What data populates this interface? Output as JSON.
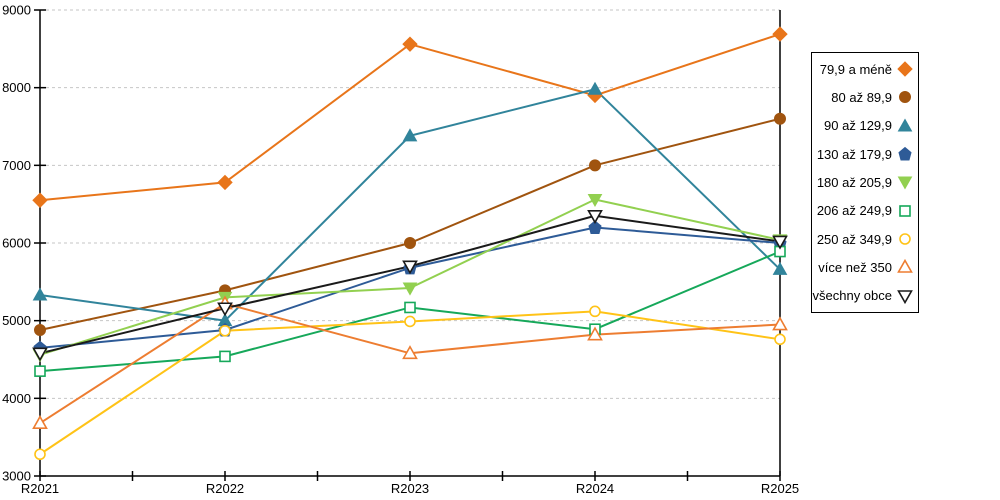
{
  "chart_data": {
    "type": "line",
    "title": "",
    "xlabel": "",
    "ylabel": "",
    "categories": [
      "R2021",
      "R2022",
      "R2023",
      "R2024",
      "R2025"
    ],
    "ylim": [
      3000,
      9000
    ],
    "y_ticks": [
      3000,
      4000,
      5000,
      6000,
      7000,
      8000,
      9000
    ],
    "grid": "horizontal-dashed",
    "legend_position": "right",
    "series": [
      {
        "name": "79,9 a méně",
        "marker": "diamond",
        "filled": true,
        "color": "#E8751A",
        "values": [
          6550,
          6780,
          8560,
          7900,
          8690
        ]
      },
      {
        "name": "80 až 89,9",
        "marker": "circle",
        "filled": true,
        "color": "#A0540F",
        "values": [
          4880,
          5390,
          6000,
          7000,
          7600
        ]
      },
      {
        "name": "90 až 129,9",
        "marker": "triangle-up",
        "filled": true,
        "color": "#31849B",
        "values": [
          5330,
          5000,
          7380,
          7980,
          5660
        ]
      },
      {
        "name": "130 až 179,9",
        "marker": "pentagon",
        "filled": true,
        "color": "#2E5B97",
        "values": [
          4650,
          4880,
          5680,
          6200,
          6000
        ]
      },
      {
        "name": "180 až 205,9",
        "marker": "triangle-down",
        "filled": true,
        "color": "#92D050",
        "values": [
          4560,
          5300,
          5420,
          6560,
          6040
        ]
      },
      {
        "name": "206 až 249,9",
        "marker": "square",
        "filled": false,
        "color": "#16A85A",
        "values": [
          4350,
          4540,
          5170,
          4890,
          5890
        ]
      },
      {
        "name": "250 až 349,9",
        "marker": "circle",
        "filled": false,
        "color": "#FFC317",
        "values": [
          3280,
          4870,
          4990,
          5120,
          4760
        ]
      },
      {
        "name": "více než 350",
        "marker": "triangle-up",
        "filled": false,
        "color": "#ED7D31",
        "values": [
          3680,
          5220,
          4580,
          4820,
          4950
        ]
      },
      {
        "name": "všechny obce",
        "marker": "triangle-down",
        "filled": false,
        "color": "#1A1A1A",
        "values": [
          4580,
          5160,
          5700,
          6350,
          6020
        ]
      }
    ],
    "colors": {
      "gridline": "#C6C6C6",
      "axis": "#000000",
      "background": "#FFFFFF"
    }
  }
}
